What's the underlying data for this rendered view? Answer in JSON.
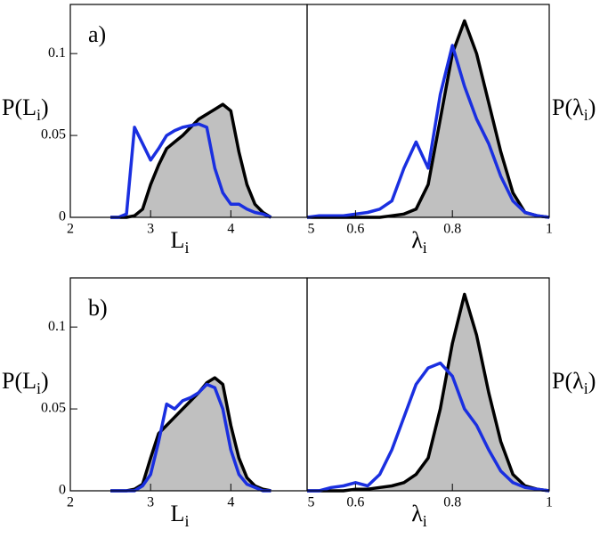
{
  "chart_data": [
    {
      "type": "line",
      "title": "a)",
      "xlabel": [
        "L",
        "i"
      ],
      "ylabel": [
        "P(L",
        "i",
        ")"
      ],
      "x": [
        2.5,
        2.6,
        2.7,
        2.8,
        2.9,
        3.0,
        3.1,
        3.2,
        3.3,
        3.4,
        3.5,
        3.6,
        3.7,
        3.8,
        3.9,
        4.0,
        4.1,
        4.2,
        4.3,
        4.4,
        4.5
      ],
      "series": [
        {
          "color": "#000000",
          "fill": "#c0c0c0",
          "values": [
            0,
            0,
            0,
            0.001,
            0.005,
            0.02,
            0.032,
            0.042,
            0.046,
            0.05,
            0.055,
            0.06,
            0.063,
            0.066,
            0.069,
            0.065,
            0.04,
            0.02,
            0.008,
            0.003,
            0
          ]
        },
        {
          "color": "#1a2fe0",
          "values": [
            0,
            0,
            0.002,
            0.055,
            0.045,
            0.035,
            0.042,
            0.05,
            0.053,
            0.055,
            0.056,
            0.057,
            0.055,
            0.03,
            0.015,
            0.008,
            0.008,
            0.005,
            0.003,
            0.002,
            0
          ]
        }
      ],
      "xlim": [
        2,
        4.95
      ],
      "xticks": [
        2,
        3,
        4,
        5
      ],
      "ylim": [
        0,
        0.13
      ],
      "yticks": [
        0,
        0.05,
        0.1
      ]
    },
    {
      "type": "line",
      "xlabel": [
        "λ",
        "i"
      ],
      "ylabel": [
        "P(λ",
        "i",
        ")"
      ],
      "x": [
        0.5,
        0.525,
        0.55,
        0.575,
        0.6,
        0.625,
        0.65,
        0.675,
        0.7,
        0.725,
        0.75,
        0.775,
        0.8,
        0.825,
        0.85,
        0.875,
        0.9,
        0.925,
        0.95,
        0.975,
        1.0
      ],
      "series": [
        {
          "color": "#000000",
          "fill": "#c0c0c0",
          "values": [
            0,
            0,
            0,
            0,
            0,
            0,
            0,
            0.001,
            0.002,
            0.005,
            0.02,
            0.06,
            0.1,
            0.12,
            0.1,
            0.07,
            0.04,
            0.015,
            0.003,
            0.001,
            0
          ]
        },
        {
          "color": "#1a2fe0",
          "values": [
            0,
            0.001,
            0.001,
            0.001,
            0.002,
            0.003,
            0.005,
            0.01,
            0.03,
            0.046,
            0.03,
            0.075,
            0.105,
            0.08,
            0.06,
            0.045,
            0.025,
            0.01,
            0.003,
            0.001,
            0
          ]
        }
      ],
      "xlim": [
        0.5,
        1
      ],
      "xticks": [
        0.6,
        0.8,
        1
      ],
      "ylim": [
        0,
        0.13
      ]
    },
    {
      "type": "line",
      "title": "b)",
      "xlabel": [
        "L",
        "i"
      ],
      "ylabel": [
        "P(L",
        "i",
        ")"
      ],
      "x": [
        2.5,
        2.6,
        2.7,
        2.8,
        2.9,
        3.0,
        3.1,
        3.2,
        3.3,
        3.4,
        3.5,
        3.6,
        3.7,
        3.8,
        3.9,
        4.0,
        4.1,
        4.2,
        4.3,
        4.4,
        4.5
      ],
      "series": [
        {
          "color": "#000000",
          "fill": "#c0c0c0",
          "values": [
            0,
            0,
            0,
            0.001,
            0.004,
            0.02,
            0.035,
            0.04,
            0.045,
            0.05,
            0.055,
            0.06,
            0.066,
            0.069,
            0.065,
            0.04,
            0.02,
            0.008,
            0.003,
            0.001,
            0
          ]
        },
        {
          "color": "#1a2fe0",
          "values": [
            0,
            0,
            0,
            0,
            0.003,
            0.01,
            0.03,
            0.053,
            0.05,
            0.055,
            0.057,
            0.06,
            0.065,
            0.063,
            0.05,
            0.025,
            0.01,
            0.004,
            0.002,
            0,
            0
          ]
        }
      ],
      "xlim": [
        2,
        4.95
      ],
      "xticks": [
        2,
        3,
        4,
        5
      ],
      "ylim": [
        0,
        0.13
      ],
      "yticks": [
        0,
        0.05,
        0.1
      ]
    },
    {
      "type": "line",
      "xlabel": [
        "λ",
        "i"
      ],
      "ylabel": [
        "P(λ",
        "i",
        ")"
      ],
      "x": [
        0.5,
        0.525,
        0.55,
        0.575,
        0.6,
        0.625,
        0.65,
        0.675,
        0.7,
        0.725,
        0.75,
        0.775,
        0.8,
        0.825,
        0.85,
        0.875,
        0.9,
        0.925,
        0.95,
        0.975,
        1.0
      ],
      "series": [
        {
          "color": "#000000",
          "fill": "#c0c0c0",
          "values": [
            0,
            0,
            0,
            0,
            0.001,
            0.001,
            0.002,
            0.003,
            0.005,
            0.01,
            0.02,
            0.05,
            0.09,
            0.12,
            0.095,
            0.06,
            0.03,
            0.01,
            0.003,
            0.001,
            0
          ]
        },
        {
          "color": "#1a2fe0",
          "values": [
            0,
            0,
            0.002,
            0.003,
            0.005,
            0.003,
            0.01,
            0.025,
            0.045,
            0.065,
            0.075,
            0.078,
            0.07,
            0.05,
            0.04,
            0.025,
            0.012,
            0.005,
            0.002,
            0.001,
            0
          ]
        }
      ],
      "xlim": [
        0.5,
        1
      ],
      "xticks": [
        0.6,
        0.8,
        1
      ],
      "ylim": [
        0,
        0.13
      ]
    }
  ]
}
